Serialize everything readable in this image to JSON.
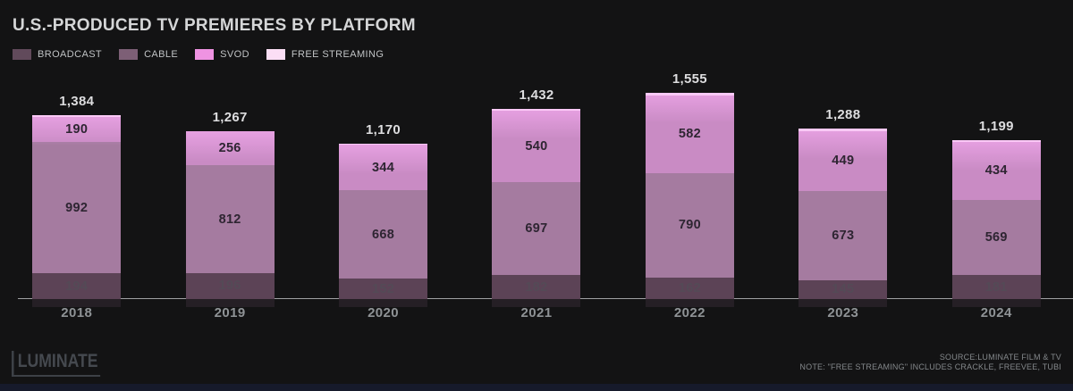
{
  "title": "U.S.-PRODUCED TV PREMIERES BY PLATFORM",
  "legend": [
    {
      "label": "BROADCAST",
      "color": "#614a5b"
    },
    {
      "label": "CABLE",
      "color": "#7d5f76"
    },
    {
      "label": "SVOD",
      "color": "#ef93e2"
    },
    {
      "label": "FREE STREAMING",
      "color": "#fbdef5"
    }
  ],
  "chart_data": {
    "type": "bar",
    "stacked": true,
    "categories": [
      "2018",
      "2019",
      "2020",
      "2021",
      "2022",
      "2023",
      "2024"
    ],
    "series": [
      {
        "name": "BROADCAST",
        "color": "#5c4356",
        "label_color": "#544a56",
        "show_labels": true,
        "values": [
          194,
          196,
          152,
          182,
          162,
          145,
          181
        ]
      },
      {
        "name": "CABLE",
        "color": "#a57ba0",
        "label_color": "#2e2532",
        "show_labels": true,
        "values": [
          992,
          812,
          668,
          697,
          790,
          673,
          569
        ]
      },
      {
        "name": "SVOD",
        "color": "#c98bc4",
        "label_color": "#2e2532",
        "show_labels": true,
        "values": [
          190,
          256,
          344,
          540,
          582,
          449,
          434
        ]
      },
      {
        "name": "FREE STREAMING",
        "color": "#f6e3f3",
        "label_color": null,
        "show_labels": false,
        "values": [
          8,
          3,
          6,
          13,
          21,
          21,
          15
        ]
      }
    ],
    "totals": [
      "1,384",
      "1,267",
      "1,170",
      "1,432",
      "1,555",
      "1,288",
      "1,199"
    ],
    "title": "U.S.-PRODUCED TV PREMIERES BY PLATFORM",
    "xlabel": "",
    "ylabel": "",
    "ylim": [
      0,
      1600
    ],
    "grid": false,
    "legend_position": "top-left"
  },
  "footer": {
    "source": "SOURCE:LUMINATE FILM & TV",
    "note": "NOTE: \"FREE STREAMING\" INCLUDES CRACKLE, FREEVEE, TUBI",
    "logo": "LUMINATE"
  }
}
